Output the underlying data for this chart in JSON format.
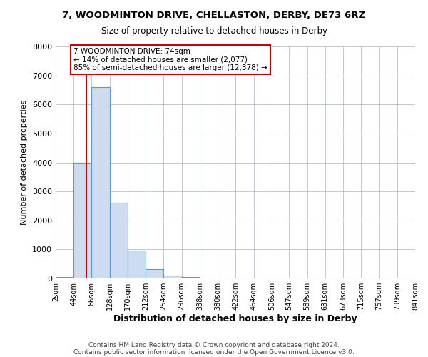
{
  "title_line1": "7, WOODMINTON DRIVE, CHELLASTON, DERBY, DE73 6RZ",
  "title_line2": "Size of property relative to detached houses in Derby",
  "xlabel": "Distribution of detached houses by size in Derby",
  "ylabel": "Number of detached properties",
  "bar_heights": [
    50,
    4000,
    6600,
    2600,
    950,
    320,
    100,
    50,
    0,
    0,
    0,
    0,
    0,
    0,
    0,
    0,
    0,
    0,
    0,
    0
  ],
  "bin_edges": [
    2,
    44,
    86,
    128,
    170,
    212,
    254,
    296,
    338,
    380,
    422,
    464,
    506,
    547,
    589,
    631,
    673,
    715,
    757,
    799,
    841
  ],
  "bin_labels": [
    "2sqm",
    "44sqm",
    "86sqm",
    "128sqm",
    "170sqm",
    "212sqm",
    "254sqm",
    "296sqm",
    "338sqm",
    "380sqm",
    "422sqm",
    "464sqm",
    "506sqm",
    "547sqm",
    "589sqm",
    "631sqm",
    "673sqm",
    "715sqm",
    "757sqm",
    "799sqm",
    "841sqm"
  ],
  "bar_color": "#cddcf0",
  "bar_edge_color": "#5b9bd5",
  "vline_x": 74,
  "vline_color": "#cc0000",
  "ylim": [
    0,
    8000
  ],
  "yticks": [
    0,
    1000,
    2000,
    3000,
    4000,
    5000,
    6000,
    7000,
    8000
  ],
  "annotation_title": "7 WOODMINTON DRIVE: 74sqm",
  "annotation_line1": "← 14% of detached houses are smaller (2,077)",
  "annotation_line2": "85% of semi-detached houses are larger (12,378) →",
  "annotation_box_color": "#ffffff",
  "annotation_box_edge": "#cc0000",
  "footer_line1": "Contains HM Land Registry data © Crown copyright and database right 2024.",
  "footer_line2": "Contains public sector information licensed under the Open Government Licence v3.0.",
  "background_color": "#ffffff",
  "grid_color": "#c0c8d8"
}
